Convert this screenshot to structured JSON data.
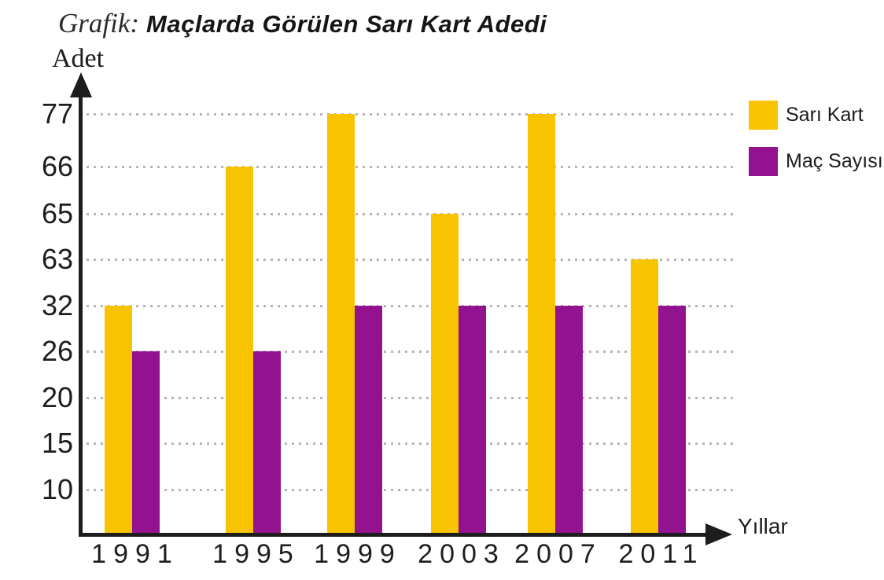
{
  "title": {
    "prefix": "Grafik:",
    "text": "Maçlarda Görülen Sarı Kart Adedi"
  },
  "axes": {
    "y_label": "Adet",
    "x_label": "Yıllar"
  },
  "legend": {
    "items": [
      {
        "label": "Sarı Kart",
        "color": "#f8c301"
      },
      {
        "label": "Maç Sayısı",
        "color": "#92128f"
      }
    ]
  },
  "colors": {
    "axis": "#1d1d1b",
    "grid_dot": "#b5b5b5",
    "sari_kart": "#f8c301",
    "mac_sayisi": "#92128f",
    "background": "#ffffff"
  },
  "chart_data": {
    "type": "bar",
    "title": "Grafik: Maçlarda Görülen Sarı Kart Adedi",
    "categories": [
      "1991",
      "1995",
      "1999",
      "2003",
      "2007",
      "2011"
    ],
    "series": [
      {
        "name": "Sarı Kart",
        "color": "#f8c301",
        "values": [
          32,
          66,
          77,
          65,
          77,
          63
        ]
      },
      {
        "name": "Maç Sayısı",
        "color": "#92128f",
        "values": [
          26,
          26,
          32,
          32,
          32,
          32
        ]
      }
    ],
    "xlabel": "Yıllar",
    "ylabel": "Adet",
    "y_tick_labels": [
      77,
      66,
      65,
      63,
      32,
      26,
      20,
      15,
      10
    ],
    "y_axis_note": "tick labels evenly spaced top-to-bottom; bar tops align exactly with gridlines (non-linear scale)",
    "grid": "dotted horizontal gridlines",
    "legend_position": "top-right"
  }
}
